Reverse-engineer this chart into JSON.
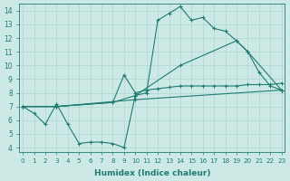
{
  "xlabel": "Humidex (Indice chaleur)",
  "xlim": [
    -0.3,
    23.3
  ],
  "ylim": [
    3.7,
    14.5
  ],
  "yticks": [
    4,
    5,
    6,
    7,
    8,
    9,
    10,
    11,
    12,
    13,
    14
  ],
  "xticks": [
    0,
    1,
    2,
    3,
    4,
    5,
    6,
    7,
    8,
    9,
    10,
    11,
    12,
    13,
    14,
    15,
    16,
    17,
    18,
    19,
    20,
    21,
    22,
    23
  ],
  "background_color": "#cde9e6",
  "line_color": "#1e7b72",
  "grid_color": "#aed5d1",
  "curve1_x": [
    0,
    1,
    2,
    3,
    4,
    5,
    6,
    7,
    8,
    9,
    10,
    11,
    12,
    13,
    14,
    15,
    16,
    17,
    18,
    19,
    20,
    21,
    22,
    23
  ],
  "curve1_y": [
    7.0,
    6.5,
    5.7,
    7.2,
    5.7,
    4.3,
    4.4,
    4.4,
    4.3,
    4.0,
    7.8,
    8.0,
    13.3,
    13.8,
    14.3,
    13.3,
    13.5,
    12.7,
    12.5,
    11.8,
    11.0,
    9.5,
    8.5,
    8.2
  ],
  "curve2_x": [
    0,
    3,
    8,
    9,
    10,
    11,
    12,
    13,
    14,
    15,
    16,
    17,
    18,
    19,
    20,
    21,
    22,
    23
  ],
  "curve2_y": [
    7.0,
    7.0,
    7.3,
    9.3,
    8.0,
    8.2,
    8.3,
    8.4,
    8.5,
    8.5,
    8.5,
    8.5,
    8.5,
    8.5,
    8.6,
    8.6,
    8.6,
    8.7
  ],
  "curve3_x": [
    0,
    3,
    8,
    10,
    14,
    19,
    20,
    23
  ],
  "curve3_y": [
    7.0,
    7.0,
    7.3,
    7.8,
    10.0,
    11.8,
    11.0,
    8.2
  ],
  "curve4_x": [
    0,
    3,
    10,
    23
  ],
  "curve4_y": [
    7.0,
    7.0,
    7.5,
    8.2
  ]
}
